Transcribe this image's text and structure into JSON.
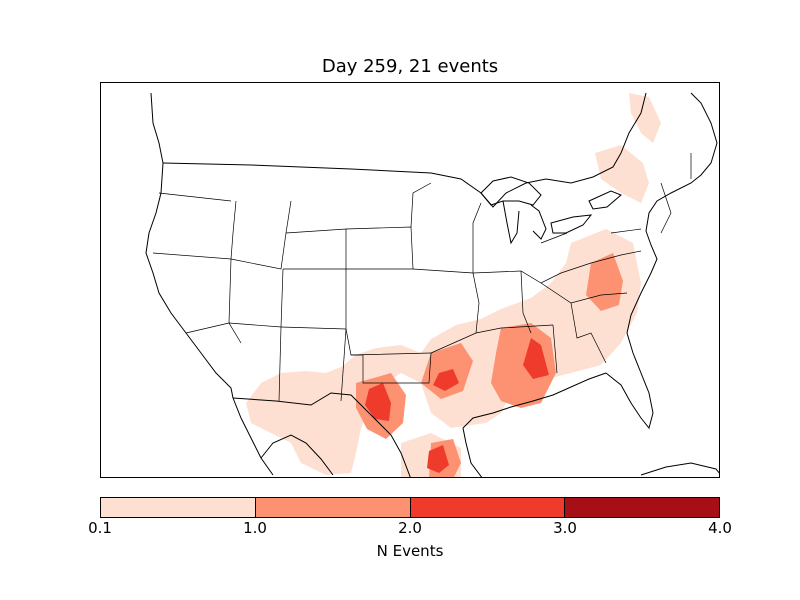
{
  "title": "Day 259, 21 events",
  "colorbar": {
    "label": "N Events",
    "ticks": [
      "0.1",
      "1.0",
      "2.0",
      "3.0",
      "4.0"
    ],
    "colors": [
      "#fee0d2",
      "#fc9272",
      "#ef3b2c",
      "#a50f15"
    ]
  }
}
